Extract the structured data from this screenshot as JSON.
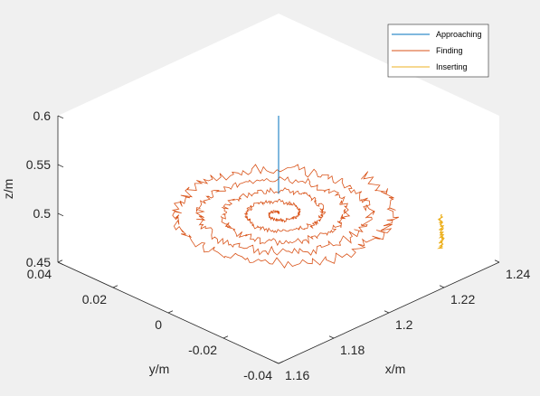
{
  "colors": {
    "background": "#f0f0f0",
    "plot_face": "#ffffff",
    "axis": "#262626",
    "approaching": "#0072bd",
    "finding": "#d95319",
    "inserting": "#edb120"
  },
  "chart_data": {
    "type": "line",
    "view": "3d",
    "title": "",
    "xlabel": "x/m",
    "ylabel": "y/m",
    "zlabel": "z/m",
    "xlim": [
      1.16,
      1.24
    ],
    "ylim": [
      -0.04,
      0.04
    ],
    "zlim": [
      0.45,
      0.6
    ],
    "xticks": [
      "1.16",
      "1.18",
      "1.2",
      "1.22",
      "1.24"
    ],
    "yticks": [
      "0.04",
      "0.02",
      "0",
      "-0.02",
      "-0.04"
    ],
    "zticks": [
      "0.6",
      "0.55",
      "0.5",
      "0.45"
    ],
    "grid": false,
    "legend_position": "top-right",
    "series": [
      {
        "name": "Approaching",
        "shape": "vertical line",
        "x": [
          1.2,
          1.2
        ],
        "y": [
          0,
          0
        ],
        "z": [
          0.6,
          0.52
        ]
      },
      {
        "name": "Finding",
        "shape": "outward spiral search",
        "center": {
          "x": 1.2,
          "y": 0
        },
        "z": 0.5,
        "max_radius": 0.03,
        "turns": 5
      },
      {
        "name": "Inserting",
        "shape": "vertical jittered line",
        "x": [
          1.229,
          1.229
        ],
        "y": [
          -0.03,
          -0.03
        ],
        "z": [
          0.5,
          0.465
        ]
      }
    ]
  }
}
